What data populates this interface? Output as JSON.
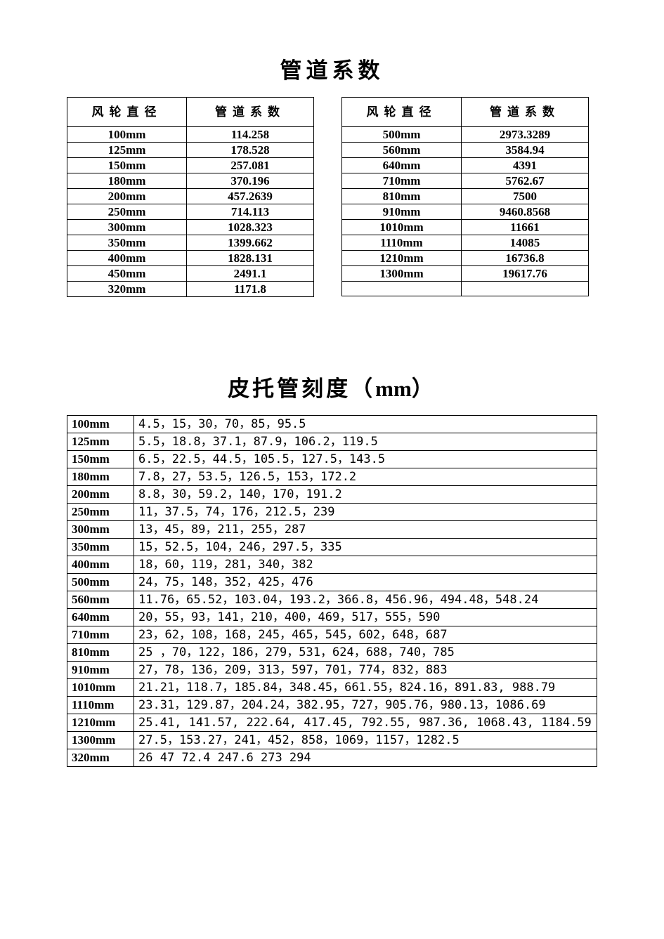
{
  "title1": "管道系数",
  "title2_main": "皮托管刻度（",
  "title2_unit": "mm",
  "title2_close": "）",
  "header_diameter": "风轮直径",
  "header_coef": "管道系数",
  "table1_left": [
    {
      "d": "100mm",
      "v": "114.258"
    },
    {
      "d": "125mm",
      "v": "178.528"
    },
    {
      "d": "150mm",
      "v": "257.081"
    },
    {
      "d": "180mm",
      "v": "370.196"
    },
    {
      "d": "200mm",
      "v": "457.2639"
    },
    {
      "d": "250mm",
      "v": "714.113"
    },
    {
      "d": "300mm",
      "v": "1028.323"
    },
    {
      "d": "350mm",
      "v": "1399.662"
    },
    {
      "d": "400mm",
      "v": "1828.131"
    },
    {
      "d": "450mm",
      "v": "2491.1"
    },
    {
      "d": "320mm",
      "v": "1171.8"
    }
  ],
  "table1_right": [
    {
      "d": "500mm",
      "v": "2973.3289"
    },
    {
      "d": "560mm",
      "v": "3584.94"
    },
    {
      "d": "640mm",
      "v": "4391"
    },
    {
      "d": "710mm",
      "v": "5762.67"
    },
    {
      "d": "810mm",
      "v": "7500"
    },
    {
      "d": "910mm",
      "v": "9460.8568"
    },
    {
      "d": "1010mm",
      "v": "11661"
    },
    {
      "d": "1110mm",
      "v": "14085"
    },
    {
      "d": "1210mm",
      "v": "16736.8"
    },
    {
      "d": "1300mm",
      "v": "19617.76"
    },
    {
      "d": "",
      "v": ""
    }
  ],
  "pitot": [
    {
      "d": "100mm",
      "v": "4.5，15，30，70，85，95.5"
    },
    {
      "d": "125mm",
      "v": "5.5，18.8，37.1，87.9，106.2，119.5"
    },
    {
      "d": "150mm",
      "v": "6.5，22.5，44.5，105.5，127.5，143.5"
    },
    {
      "d": "180mm",
      "v": "7.8，27，53.5，126.5，153，172.2"
    },
    {
      "d": "200mm",
      "v": "8.8，30，59.2，140，170，191.2"
    },
    {
      "d": "250mm",
      "v": "11，37.5，74，176，212.5，239"
    },
    {
      "d": "300mm",
      "v": "13，45，89，211，255，287"
    },
    {
      "d": "350mm",
      "v": "15，52.5，104，246，297.5，335"
    },
    {
      "d": "400mm",
      "v": "18，60，119，281，340，382"
    },
    {
      "d": "500mm",
      "v": "24，75，148，352，425，476"
    },
    {
      "d": "560mm",
      "v": "11.76，65.52，103.04，193.2，366.8，456.96，494.48，548.24"
    },
    {
      "d": "640mm",
      "v": "20，55，93，141，210，400，469，517，555，590"
    },
    {
      "d": "710mm",
      "v": "23，62，108，168，245，465，545，602，648，687"
    },
    {
      "d": "810mm",
      "v": "25 ，70，122，186，279，531，624，688，740，785"
    },
    {
      "d": "910mm",
      "v": "27，78，136，209，313，597，701，774，832，883"
    },
    {
      "d": "1010mm",
      "v": "21.21，118.7，185.84，348.45，661.55，824.16，891.83, 988.79"
    },
    {
      "d": "1110mm",
      "v": "23.31，129.87，204.24，382.95，727，905.76，980.13，1086.69"
    },
    {
      "d": "1210mm",
      "v": "25.41, 141.57, 222.64, 417.45, 792.55, 987.36, 1068.43, 1184.59"
    },
    {
      "d": "1300mm",
      "v": "27.5，153.27，241，452，858，1069，1157，1282.5"
    },
    {
      "d": "320mm",
      "v": "26   47   72.4   247.6   273   294"
    }
  ]
}
